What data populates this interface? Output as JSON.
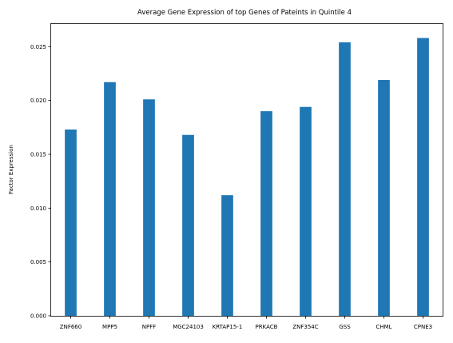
{
  "chart_data": {
    "type": "bar",
    "title": "Average Gene Expression of top Genes of Pateints in Quintile 4",
    "xlabel": "",
    "ylabel": "Factor Expression",
    "categories": [
      "ZNF660",
      "MPP5",
      "NPFF",
      "MGC24103",
      "KRTAP15-1",
      "PRKACB",
      "ZNF354C",
      "GSS",
      "CHML",
      "CPNE3"
    ],
    "values": [
      0.0173,
      0.0217,
      0.0201,
      0.0168,
      0.0112,
      0.019,
      0.0194,
      0.0254,
      0.0219,
      0.0258
    ],
    "ylim": [
      0,
      0.0271
    ],
    "yticks": [
      "0.000",
      "0.005",
      "0.010",
      "0.015",
      "0.020",
      "0.025"
    ],
    "ytick_values": [
      0,
      0.005,
      0.01,
      0.015,
      0.02,
      0.025
    ],
    "grid": false,
    "legend": "none",
    "bar_color": "#1f77b4"
  }
}
